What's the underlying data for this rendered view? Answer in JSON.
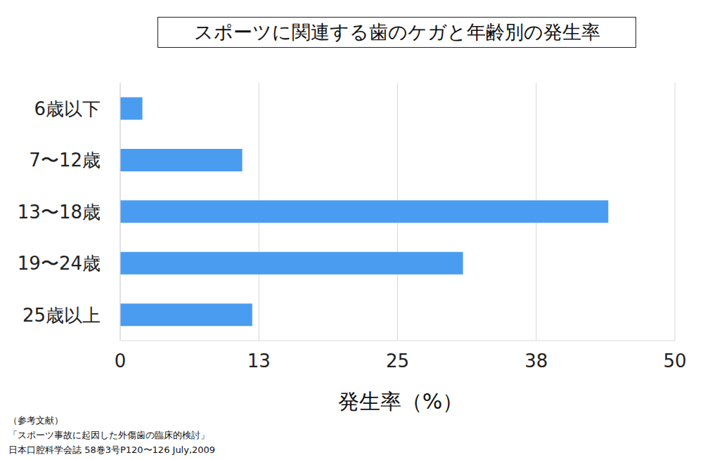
{
  "chart_data": {
    "type": "bar",
    "orientation": "horizontal",
    "title": "スポーツに関連する歯のケガと年齢別の発生率",
    "x_label": "発生率（%）",
    "categories": [
      "6歳以下",
      "7〜12歳",
      "13〜18歳",
      "19〜24歳",
      "25歳以上"
    ],
    "values": [
      2.0,
      11.0,
      44.0,
      30.9,
      11.9
    ],
    "color": "#4a9cf0",
    "xlim": [
      0,
      50
    ],
    "xticks": [
      0,
      {
        "value": 12.5,
        "label": "13"
      },
      25,
      {
        "value": 37.5,
        "label": "38"
      },
      50
    ],
    "grid": true,
    "annotations": [
      "（参考文献）",
      "「スポーツ事故に起因した外傷歯の臨床的検討」",
      "日本口腔科学会誌 58巻3号P120〜126 July,2009"
    ]
  }
}
